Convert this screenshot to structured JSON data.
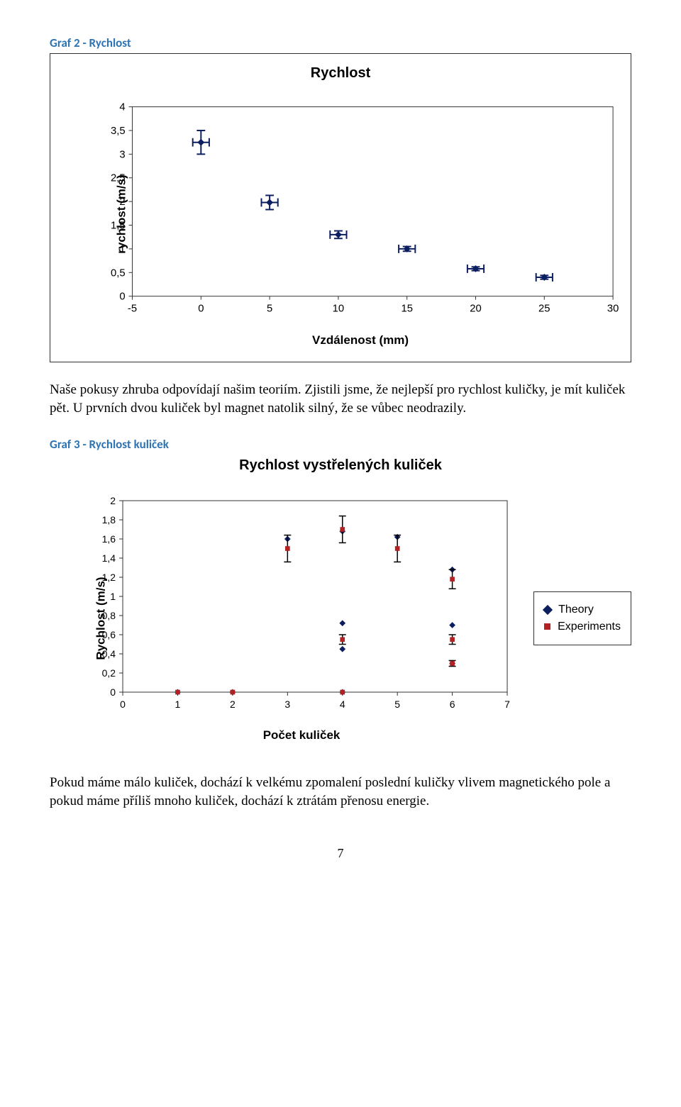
{
  "graf2": {
    "heading": "Graf 2 - Rychlost",
    "chart": {
      "type": "scatter",
      "title": "Rychlost",
      "title_fontsize": 20,
      "xlabel": "Vzdálenost (mm)",
      "ylabel": "rychlost (m/s)",
      "label_fontsize": 17,
      "xlim": [
        -5,
        30
      ],
      "xtick_step": 5,
      "ylim": [
        0,
        4
      ],
      "ytick_step": 0.5,
      "yticks": [
        "0",
        "0,5",
        "1",
        "1,5",
        "2",
        "2,5",
        "3",
        "3,5",
        "4"
      ],
      "xticks": [
        "-5",
        "0",
        "5",
        "10",
        "15",
        "20",
        "25",
        "30"
      ],
      "grid": false,
      "background_color": "#ffffff",
      "border_color": "#333333",
      "marker_color": "#0b1f60",
      "marker_style": "diamond",
      "marker_size": 8,
      "errorbar_color": "#0b1f60",
      "errorbar_cap": 6,
      "errorbar_width": 2,
      "points": [
        {
          "x": 0,
          "y": 3.25,
          "xerr": 0.6,
          "yerr": 0.25
        },
        {
          "x": 5,
          "y": 1.98,
          "xerr": 0.6,
          "yerr": 0.15
        },
        {
          "x": 10,
          "y": 1.3,
          "xerr": 0.6,
          "yerr": 0.08
        },
        {
          "x": 15,
          "y": 1.0,
          "xerr": 0.6,
          "yerr": 0.05
        },
        {
          "x": 20,
          "y": 0.58,
          "xerr": 0.6,
          "yerr": 0.04
        },
        {
          "x": 25,
          "y": 0.4,
          "xerr": 0.6,
          "yerr": 0.04
        }
      ]
    }
  },
  "paragraph1": "Naše pokusy zhruba odpovídají našim teoriím. Zjistili jsme, že nejlepší pro rychlost kuličky, je mít kuliček pět. U prvních dvou kuliček byl magnet natolik silný, že se vůbec neodrazily.",
  "graf3": {
    "heading": "Graf 3 - Rychlost kuliček",
    "chart": {
      "type": "scatter",
      "title": "Rychlost vystřelených kuliček",
      "title_fontsize": 20,
      "xlabel": "Počet kuliček",
      "ylabel": "Rychlost (m/s)",
      "label_fontsize": 17,
      "xlim": [
        0,
        7
      ],
      "xtick_step": 1,
      "ylim": [
        0,
        2
      ],
      "ytick_step": 0.2,
      "yticks": [
        "0",
        "0,2",
        "0,4",
        "0,6",
        "0,8",
        "1",
        "1,2",
        "1,4",
        "1,6",
        "1,8",
        "2"
      ],
      "xticks": [
        "0",
        "1",
        "2",
        "3",
        "4",
        "5",
        "6",
        "7"
      ],
      "grid": false,
      "background_color": "#ffffff",
      "border_color": "#333333",
      "series": [
        {
          "name": "Theory",
          "marker_color": "#0b1f60",
          "marker_style": "diamond",
          "marker_size": 7,
          "points": [
            {
              "x": 1,
              "y": 0.0
            },
            {
              "x": 2,
              "y": 0.0
            },
            {
              "x": 3,
              "y": 1.6
            },
            {
              "x": 4,
              "y": 1.68
            },
            {
              "x": 4,
              "y": 0.72
            },
            {
              "x": 4,
              "y": 0.45
            },
            {
              "x": 4,
              "y": 0.0
            },
            {
              "x": 5,
              "y": 1.62
            },
            {
              "x": 6,
              "y": 1.28
            },
            {
              "x": 6,
              "y": 0.7
            },
            {
              "x": 6,
              "y": 0.3
            }
          ]
        },
        {
          "name": "Experiments",
          "marker_color": "#b22222",
          "marker_style": "square",
          "marker_size": 6,
          "errorbar_color": "#000000",
          "errorbar_width": 1.5,
          "errorbar_cap": 5,
          "points": [
            {
              "x": 1,
              "y": 0.0,
              "yerr": 0.0
            },
            {
              "x": 2,
              "y": 0.0,
              "yerr": 0.0
            },
            {
              "x": 3,
              "y": 1.5,
              "yerr": 0.14
            },
            {
              "x": 4,
              "y": 1.7,
              "yerr": 0.14
            },
            {
              "x": 4,
              "y": 0.55,
              "yerr": 0.05
            },
            {
              "x": 4,
              "y": 0.0,
              "yerr": 0.0
            },
            {
              "x": 5,
              "y": 1.5,
              "yerr": 0.14
            },
            {
              "x": 6,
              "y": 1.18,
              "yerr": 0.1
            },
            {
              "x": 6,
              "y": 0.55,
              "yerr": 0.05
            },
            {
              "x": 6,
              "y": 0.3,
              "yerr": 0.03
            }
          ]
        }
      ],
      "legend": {
        "position": "right",
        "items": [
          "Theory",
          "Experiments"
        ]
      }
    }
  },
  "paragraph2": "Pokud máme málo kuliček, dochází k velkému zpomalení poslední kuličky vlivem magnetického pole a pokud máme příliš mnoho kuliček, dochází k ztrátám přenosu energie.",
  "page_number": "7"
}
